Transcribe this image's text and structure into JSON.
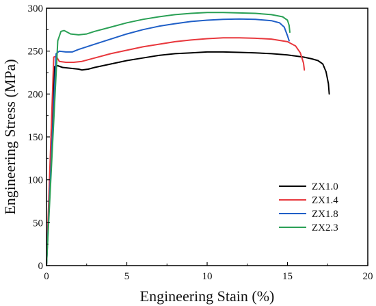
{
  "chart_data": {
    "type": "line",
    "title": "",
    "xlabel": "Engineering Stain (%)",
    "ylabel": "Engineering Stress (MPa)",
    "xlim": [
      0,
      20
    ],
    "ylim": [
      0,
      300
    ],
    "x_ticks": [
      0,
      5,
      10,
      15,
      20
    ],
    "y_ticks": [
      0,
      50,
      100,
      150,
      200,
      250,
      300
    ],
    "grid": false,
    "legend_position": "lower-right",
    "series": [
      {
        "name": "ZX1.0",
        "color": "#000000",
        "points": [
          [
            0,
            0
          ],
          [
            0.5,
            232
          ],
          [
            0.7,
            233
          ],
          [
            1.0,
            231
          ],
          [
            1.5,
            230
          ],
          [
            2.0,
            229
          ],
          [
            2.2,
            228
          ],
          [
            2.6,
            229
          ],
          [
            3.0,
            231
          ],
          [
            4.0,
            235
          ],
          [
            5.0,
            239
          ],
          [
            6.0,
            242
          ],
          [
            7.0,
            245
          ],
          [
            8.0,
            247
          ],
          [
            9.0,
            248
          ],
          [
            10.0,
            249
          ],
          [
            11.0,
            249
          ],
          [
            12.0,
            248.5
          ],
          [
            13.0,
            248
          ],
          [
            14.0,
            247
          ],
          [
            15.0,
            245.5
          ],
          [
            16.0,
            243
          ],
          [
            16.5,
            241
          ],
          [
            16.9,
            239
          ],
          [
            17.2,
            235
          ],
          [
            17.4,
            226
          ],
          [
            17.55,
            212
          ],
          [
            17.6,
            200
          ]
        ]
      },
      {
        "name": "ZX1.4",
        "color": "#e8383d",
        "points": [
          [
            0,
            0
          ],
          [
            0.45,
            243
          ],
          [
            0.6,
            244
          ],
          [
            0.8,
            238
          ],
          [
            1.2,
            237
          ],
          [
            1.7,
            237
          ],
          [
            2.2,
            238
          ],
          [
            3.0,
            242
          ],
          [
            4.0,
            247
          ],
          [
            5.0,
            251
          ],
          [
            6.0,
            255
          ],
          [
            7.0,
            258
          ],
          [
            8.0,
            261
          ],
          [
            9.0,
            263
          ],
          [
            10.0,
            264.5
          ],
          [
            11.0,
            265.5
          ],
          [
            12.0,
            265.5
          ],
          [
            13.0,
            265
          ],
          [
            14.0,
            264
          ],
          [
            15.0,
            261
          ],
          [
            15.5,
            256
          ],
          [
            15.8,
            248
          ],
          [
            16.0,
            236
          ],
          [
            16.05,
            228
          ]
        ]
      },
      {
        "name": "ZX1.8",
        "color": "#1f5fc7",
        "points": [
          [
            0,
            0
          ],
          [
            0.6,
            247
          ],
          [
            0.8,
            250
          ],
          [
            1.2,
            249
          ],
          [
            1.6,
            249
          ],
          [
            2.0,
            252
          ],
          [
            3.0,
            258
          ],
          [
            4.0,
            264
          ],
          [
            5.0,
            270
          ],
          [
            6.0,
            275
          ],
          [
            7.0,
            279
          ],
          [
            8.0,
            282
          ],
          [
            9.0,
            284.5
          ],
          [
            10.0,
            286
          ],
          [
            11.0,
            287
          ],
          [
            12.0,
            287.5
          ],
          [
            13.0,
            287
          ],
          [
            14.0,
            285.5
          ],
          [
            14.5,
            283
          ],
          [
            14.8,
            278
          ],
          [
            15.0,
            268
          ],
          [
            15.1,
            262
          ]
        ]
      },
      {
        "name": "ZX2.3",
        "color": "#2aa055",
        "points": [
          [
            0,
            0
          ],
          [
            0.7,
            262
          ],
          [
            0.9,
            273
          ],
          [
            1.1,
            274
          ],
          [
            1.5,
            270
          ],
          [
            2.0,
            269
          ],
          [
            2.5,
            270
          ],
          [
            3.0,
            273
          ],
          [
            4.0,
            278
          ],
          [
            5.0,
            283
          ],
          [
            6.0,
            287
          ],
          [
            7.0,
            290
          ],
          [
            8.0,
            292.5
          ],
          [
            9.0,
            294
          ],
          [
            10.0,
            295
          ],
          [
            11.0,
            295
          ],
          [
            12.0,
            294.5
          ],
          [
            13.0,
            294
          ],
          [
            14.0,
            292.5
          ],
          [
            14.7,
            290
          ],
          [
            15.0,
            286
          ],
          [
            15.1,
            280
          ],
          [
            15.15,
            272
          ]
        ]
      }
    ]
  }
}
